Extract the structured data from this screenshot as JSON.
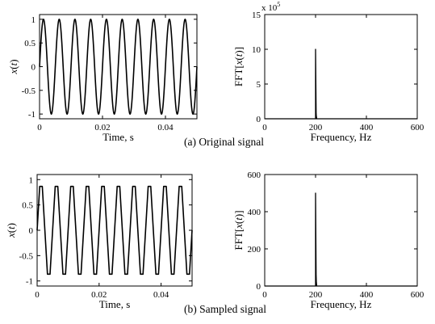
{
  "chart_data": [
    {
      "id": "a-time",
      "type": "line",
      "xlabel": "Time, s",
      "ylabel_var": "x",
      "ylabel_arg": "t",
      "xlim": [
        0,
        0.05
      ],
      "ylim": [
        -1.1,
        1.1
      ],
      "xticks": [
        0,
        0.02,
        0.04
      ],
      "xtick_labels": [
        "0",
        "0.02",
        "0.04"
      ],
      "yticks": [
        -1,
        -0.5,
        0,
        0.5,
        1
      ],
      "ytick_labels": [
        "-1",
        "-0.5",
        "0",
        "0.5",
        "1"
      ],
      "series": [
        {
          "signal": "sine",
          "frequency_hz": 200,
          "amplitude": 1,
          "samples_per_period": 60
        }
      ]
    },
    {
      "id": "a-fft",
      "type": "line",
      "xlabel": "Frequency, Hz",
      "ylabel_prefix": "FFT[",
      "ylabel_var": "x",
      "ylabel_arg": "t",
      "ylabel_suffix": "]",
      "xlim": [
        0,
        600
      ],
      "ylim": [
        0,
        15
      ],
      "xticks": [
        0,
        200,
        400,
        600
      ],
      "xtick_labels": [
        "0",
        "200",
        "400",
        "600"
      ],
      "yticks": [
        0,
        5,
        10,
        15
      ],
      "ytick_labels": [
        "0",
        "5",
        "10",
        "15"
      ],
      "y_multiplier": {
        "base": "x 10",
        "exp": "5"
      },
      "series": [
        {
          "x": [
            200,
            201,
            202
          ],
          "values": [
            10,
            1.8,
            0.7
          ]
        }
      ]
    },
    {
      "id": "b-time",
      "type": "line",
      "xlabel": "Time, s",
      "ylabel_var": "x",
      "ylabel_arg": "t",
      "xlim": [
        0,
        0.05
      ],
      "ylim": [
        -1.1,
        1.1
      ],
      "xticks": [
        0,
        0.02,
        0.04
      ],
      "xtick_labels": [
        "0",
        "0.02",
        "0.04"
      ],
      "yticks": [
        -1,
        -0.5,
        0,
        0.5,
        1
      ],
      "ytick_labels": [
        "-1",
        "-0.5",
        "0",
        "0.5",
        "1"
      ],
      "series": [
        {
          "signal": "sine",
          "frequency_hz": 200,
          "amplitude": 1,
          "samples_per_period": 6
        }
      ]
    },
    {
      "id": "b-fft",
      "type": "line",
      "xlabel": "Frequency, Hz",
      "ylabel_prefix": "FFT[",
      "ylabel_var": "x",
      "ylabel_arg": "t",
      "ylabel_suffix": "]",
      "xlim": [
        0,
        600
      ],
      "ylim": [
        0,
        600
      ],
      "xticks": [
        0,
        200,
        400,
        600
      ],
      "xtick_labels": [
        "0",
        "200",
        "400",
        "600"
      ],
      "yticks": [
        0,
        200,
        400,
        600
      ],
      "ytick_labels": [
        "0",
        "200",
        "400",
        "600"
      ],
      "series": [
        {
          "x": [
            200,
            201,
            202
          ],
          "values": [
            500,
            120,
            40
          ]
        }
      ]
    }
  ],
  "captions": {
    "a": "(a) Original signal",
    "b": "(b) Sampled signal"
  }
}
